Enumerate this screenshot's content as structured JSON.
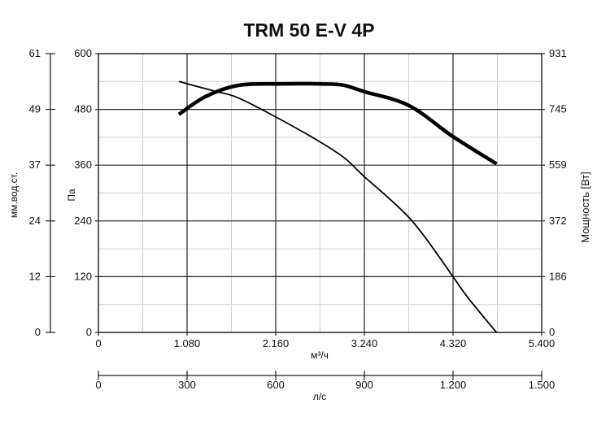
{
  "chart_data": {
    "type": "line",
    "title": "TRM 50 E-V 4P",
    "x_axis": {
      "label": "м³/ч",
      "range": [
        0,
        5400
      ],
      "ticks": [
        0,
        1080,
        2160,
        3240,
        4320,
        5400
      ],
      "tick_labels": [
        "0",
        "1.080",
        "2.160",
        "3.240",
        "4.320",
        "5.400"
      ]
    },
    "x2_axis": {
      "label": "л/с",
      "range": [
        0,
        1500
      ],
      "ticks": [
        0,
        300,
        600,
        900,
        1200,
        1500
      ],
      "tick_labels": [
        "0",
        "300",
        "600",
        "900",
        "1.200",
        "1.500"
      ]
    },
    "y_axis": {
      "label": "Па",
      "range": [
        0,
        600
      ],
      "ticks": [
        0,
        120,
        240,
        360,
        480,
        600
      ],
      "tick_labels": [
        "0",
        "120",
        "240",
        "360",
        "480",
        "600"
      ]
    },
    "y_outer_axis": {
      "label": "мм.вод.ст.",
      "range": [
        0,
        61
      ],
      "ticks": [
        0,
        12,
        24,
        37,
        49,
        61
      ],
      "tick_labels": [
        "0",
        "12",
        "24",
        "37",
        "49",
        "61"
      ]
    },
    "y_right_axis": {
      "label": "Мощность [Вт]",
      "range": [
        0,
        931
      ],
      "ticks": [
        0,
        186,
        372,
        559,
        745,
        931
      ],
      "tick_labels": [
        "0",
        "186",
        "372",
        "559",
        "745",
        "931"
      ]
    },
    "grid": true,
    "series": [
      {
        "axis": "left",
        "style": "thin",
        "x": [
          980,
          1400,
          1700,
          2200,
          2700,
          3000,
          3240,
          3500,
          3780,
          4000,
          4320,
          4500,
          4850
        ],
        "y": [
          540,
          520,
          505,
          460,
          410,
          375,
          335,
          295,
          248,
          200,
          120,
          75,
          0
        ]
      },
      {
        "axis": "right",
        "style": "bold",
        "x": [
          980,
          1300,
          1700,
          2200,
          2700,
          2980,
          3240,
          3780,
          4320,
          4850
        ],
        "y": [
          728,
          787,
          825,
          830,
          830,
          826,
          804,
          758,
          654,
          563
        ]
      }
    ]
  }
}
